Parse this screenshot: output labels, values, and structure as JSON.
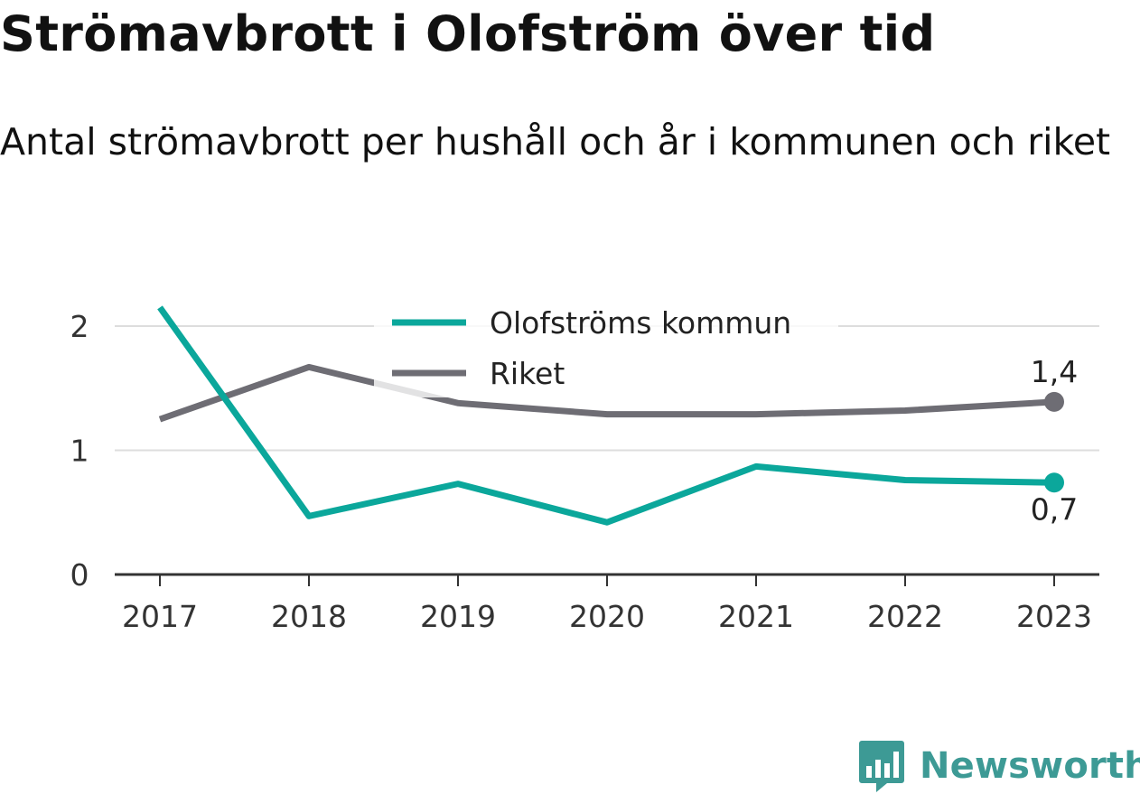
{
  "header": {
    "title": "Strömavbrott i Olofström över tid",
    "subtitle": "Antal strömavbrott per hushåll och år i kommunen och riket"
  },
  "brand": {
    "name": "Newsworthy",
    "logo_icon": "newsworthy-chart-logo-icon",
    "color": "#3d9a95"
  },
  "chart_data": {
    "type": "line",
    "title": "Strömavbrott i Olofström över tid",
    "subtitle": "Antal strömavbrott per hushåll och år i kommunen och riket",
    "xlabel": "",
    "ylabel": "",
    "x": [
      "2017",
      "2018",
      "2019",
      "2020",
      "2021",
      "2022",
      "2023"
    ],
    "ylim": [
      0,
      2.2
    ],
    "yticks": [
      0,
      1,
      2
    ],
    "ytick_labels": [
      "0",
      "1",
      "2"
    ],
    "grid": true,
    "legend_position": "top-center",
    "series": [
      {
        "name": "Olofströms kommun",
        "color": "#0ba79b",
        "values": [
          2.15,
          0.47,
          0.73,
          0.42,
          0.87,
          0.76,
          0.74
        ],
        "end_label": "0,7"
      },
      {
        "name": "Riket",
        "color": "#6e6d74",
        "values": [
          1.25,
          1.67,
          1.38,
          1.29,
          1.29,
          1.32,
          1.39
        ],
        "end_label": "1,4"
      }
    ]
  }
}
